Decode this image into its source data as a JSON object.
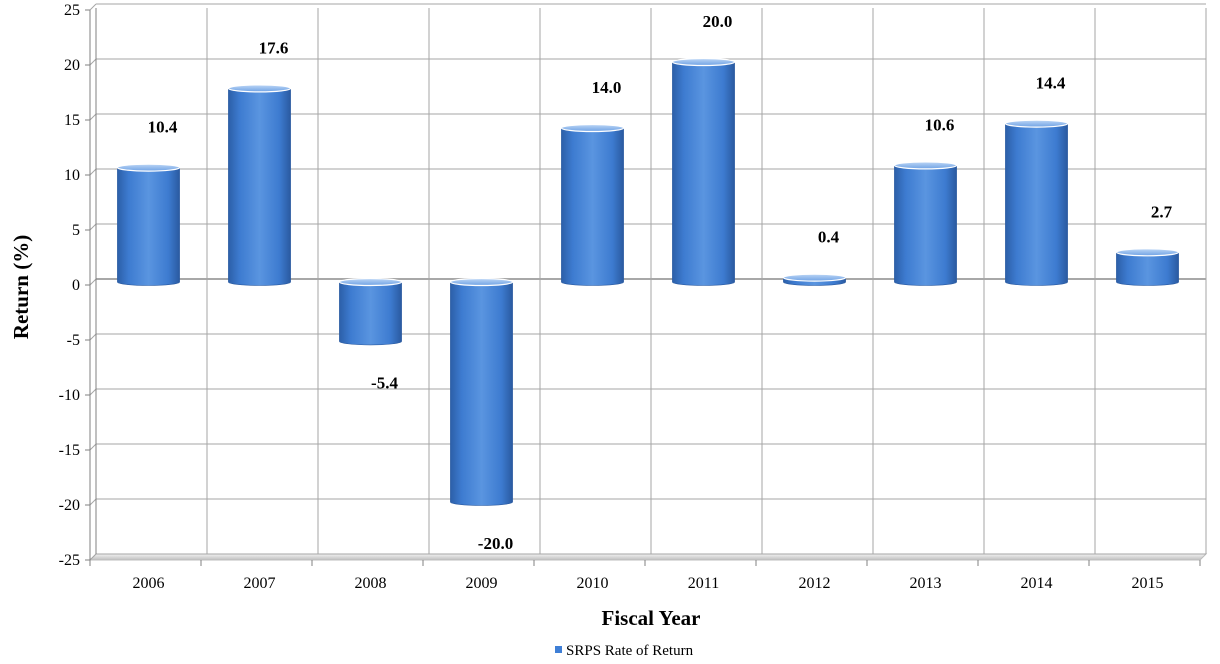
{
  "chart_data": {
    "type": "bar",
    "title": "",
    "xlabel": "Fiscal Year",
    "ylabel": "Return (%)",
    "categories": [
      "2006",
      "2007",
      "2008",
      "2009",
      "2010",
      "2011",
      "2012",
      "2013",
      "2014",
      "2015"
    ],
    "series": [
      {
        "name": "SRPS Rate of Return",
        "values": [
          10.4,
          17.6,
          -5.4,
          -20.0,
          14.0,
          20.0,
          0.4,
          10.6,
          14.4,
          2.7
        ],
        "labels": [
          "10.4",
          "17.6",
          "-5.4",
          "-20.0",
          "14.0",
          "20.0",
          "0.4",
          "10.6",
          "14.4",
          "2.7"
        ]
      }
    ],
    "ylim": [
      -25,
      25
    ],
    "yticks": [
      25,
      20,
      15,
      10,
      5,
      0,
      -5,
      -10,
      -15,
      -20,
      -25
    ],
    "grid": true,
    "legend": "bottom-center",
    "colors": {
      "bar": "#3f7fd6",
      "bar_dark": "#2a5ea8",
      "bar_light": "#8fb8ee",
      "grid": "#a6a6a6"
    }
  }
}
